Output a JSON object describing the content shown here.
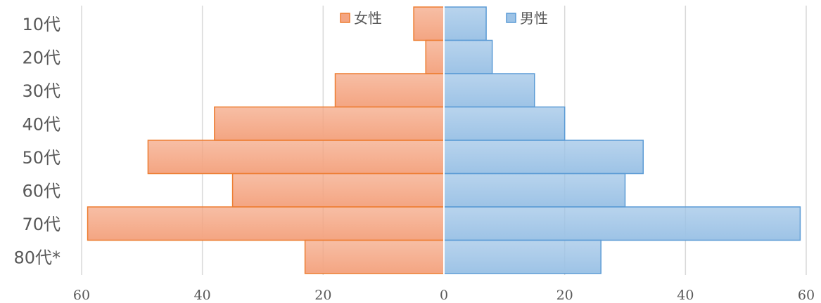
{
  "chart_data": {
    "type": "bar",
    "orientation": "horizontal",
    "subtype": "population-pyramid",
    "categories": [
      "10代",
      "20代",
      "30代",
      "40代",
      "50代",
      "60代",
      "70代",
      "80代*"
    ],
    "series": [
      {
        "name": "女性",
        "values": [
          5,
          3,
          18,
          38,
          49,
          35,
          59,
          23
        ],
        "side": "left",
        "color": "#F4A582",
        "edge_color": "#ED7D31"
      },
      {
        "name": "男性",
        "values": [
          7,
          8,
          15,
          20,
          33,
          30,
          59,
          26
        ],
        "side": "right",
        "color": "#9DC3E6",
        "edge_color": "#5B9BD5"
      }
    ],
    "xlim": [
      -60,
      60
    ],
    "x_ticks": [
      -60,
      -40,
      -20,
      0,
      20,
      40,
      60
    ],
    "x_tick_labels": [
      "60",
      "40",
      "20",
      "0",
      "20",
      "40",
      "60"
    ],
    "grid": "vertical",
    "legend_position": "top-center",
    "title": "",
    "xlabel": "",
    "ylabel": ""
  }
}
